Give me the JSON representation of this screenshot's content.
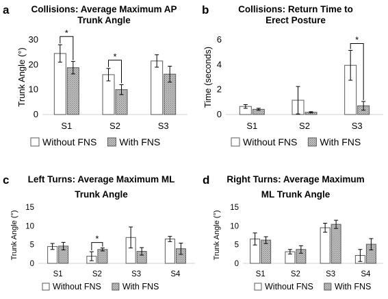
{
  "legend": {
    "without": "Without FNS",
    "with": "With FNS"
  },
  "colors": {
    "without_fill": "#ffffff",
    "with_fill": "#c8c8c8",
    "stroke": "#595959",
    "axis": "#d9d9d9"
  },
  "chart_data": [
    {
      "panel": "a",
      "type": "bar",
      "title": [
        "Collisions: Average Maximum AP",
        "Trunk Angle"
      ],
      "ylabel": "Trunk Angle (°)",
      "xlabel": "",
      "categories": [
        "S1",
        "S2",
        "S3"
      ],
      "ylim": [
        0,
        30
      ],
      "yticks": [
        0,
        10,
        20,
        30
      ],
      "series": [
        {
          "name": "Without FNS",
          "values": [
            24.5,
            16.0,
            21.5
          ],
          "errors": [
            3.5,
            2.5,
            2.5
          ]
        },
        {
          "name": "With FNS",
          "values": [
            18.8,
            10.0,
            16.2
          ],
          "errors": [
            2.5,
            2.0,
            3.2
          ]
        }
      ],
      "significance": [
        {
          "category": "S1",
          "label": "*"
        },
        {
          "category": "S2",
          "label": "*"
        }
      ],
      "legend_position": "bottom"
    },
    {
      "panel": "b",
      "type": "bar",
      "title": [
        "Collisions: Return Time to",
        "Erect Posture"
      ],
      "ylabel": "Time (seconds)",
      "xlabel": "",
      "categories": [
        "S1",
        "S2",
        "S3"
      ],
      "ylim": [
        0,
        6
      ],
      "yticks": [
        0,
        2,
        4,
        6
      ],
      "series": [
        {
          "name": "Without FNS",
          "values": [
            0.65,
            1.15,
            3.95
          ],
          "errors": [
            0.15,
            1.1,
            1.2
          ]
        },
        {
          "name": "With FNS",
          "values": [
            0.42,
            0.18,
            0.7
          ],
          "errors": [
            0.08,
            0.05,
            0.35
          ]
        }
      ],
      "significance": [
        {
          "category": "S3",
          "label": "*"
        }
      ],
      "legend_position": "bottom"
    },
    {
      "panel": "c",
      "type": "bar",
      "title": [
        "Left Turns: Average Maximum ML",
        "Trunk Angle"
      ],
      "ylabel": "Trunk Angle (°)",
      "xlabel": "",
      "categories": [
        "S1",
        "S2",
        "S3",
        "S4"
      ],
      "ylim": [
        0,
        15
      ],
      "yticks": [
        0,
        5,
        10,
        15
      ],
      "series": [
        {
          "name": "Without FNS",
          "values": [
            4.5,
            1.9,
            6.9,
            6.5
          ],
          "errors": [
            0.8,
            1.2,
            2.8,
            0.7
          ]
        },
        {
          "name": "With FNS",
          "values": [
            4.6,
            3.7,
            3.2,
            3.9
          ],
          "errors": [
            1.0,
            0.4,
            1.0,
            1.5
          ]
        }
      ],
      "significance": [
        {
          "category": "S2",
          "label": "*"
        }
      ],
      "legend_position": "bottom"
    },
    {
      "panel": "d",
      "type": "bar",
      "title": [
        "Right Turns: Average Maximum",
        "ML Trunk Angle"
      ],
      "ylabel": "Trunk Angle (°)",
      "xlabel": "",
      "categories": [
        "S1",
        "S2",
        "S3",
        "S4"
      ],
      "ylim": [
        0,
        15
      ],
      "yticks": [
        0,
        5,
        10,
        15
      ],
      "series": [
        {
          "name": "Without FNS",
          "values": [
            6.5,
            3.1,
            9.5,
            2.1
          ],
          "errors": [
            1.6,
            0.6,
            1.2,
            1.6
          ]
        },
        {
          "name": "With FNS",
          "values": [
            6.2,
            3.7,
            10.4,
            5.1
          ],
          "errors": [
            0.9,
            1.0,
            1.1,
            1.5
          ]
        }
      ],
      "significance": [],
      "legend_position": "bottom"
    }
  ]
}
